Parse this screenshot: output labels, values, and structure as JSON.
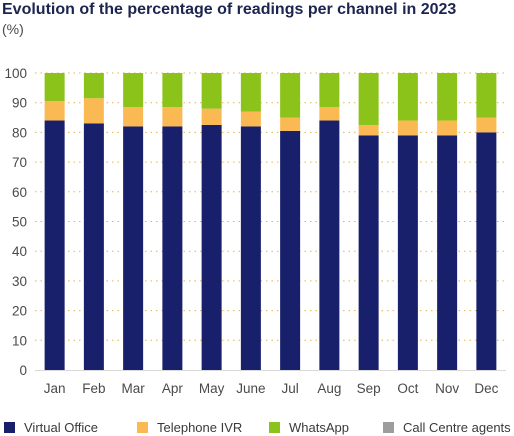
{
  "title": "Evolution of the percentage of readings per channel in 2023",
  "unit": "(%)",
  "chart_data": {
    "type": "bar",
    "stacked": true,
    "categories": [
      "Jan",
      "Feb",
      "Mar",
      "Apr",
      "May",
      "June",
      "Jul",
      "Aug",
      "Sep",
      "Oct",
      "Nov",
      "Dec"
    ],
    "series": [
      {
        "name": "Virtual Office",
        "color": "#18206b",
        "values": [
          84,
          83,
          82,
          82,
          82.5,
          82,
          80.5,
          84,
          79,
          79,
          79,
          80
        ]
      },
      {
        "name": "Telephone IVR",
        "color": "#fbb954",
        "values": [
          6.5,
          8.5,
          6.5,
          6.5,
          5.5,
          5,
          4.5,
          4.5,
          3.5,
          5,
          5,
          5
        ]
      },
      {
        "name": "WhatsApp",
        "color": "#8cc31a",
        "values": [
          9.5,
          8.5,
          11.5,
          11.5,
          12,
          13,
          15,
          11.5,
          17.5,
          16,
          16,
          15
        ]
      },
      {
        "name": "Call Centre agents",
        "color": "#9d9d9d",
        "values": [
          0,
          0,
          0,
          0,
          0,
          0,
          0,
          0,
          0,
          0,
          0,
          0
        ]
      }
    ],
    "ylim": [
      0,
      100
    ],
    "yticks": [
      0,
      10,
      20,
      30,
      40,
      50,
      60,
      70,
      80,
      90,
      100
    ],
    "grid": true,
    "legend_position": "bottom"
  }
}
